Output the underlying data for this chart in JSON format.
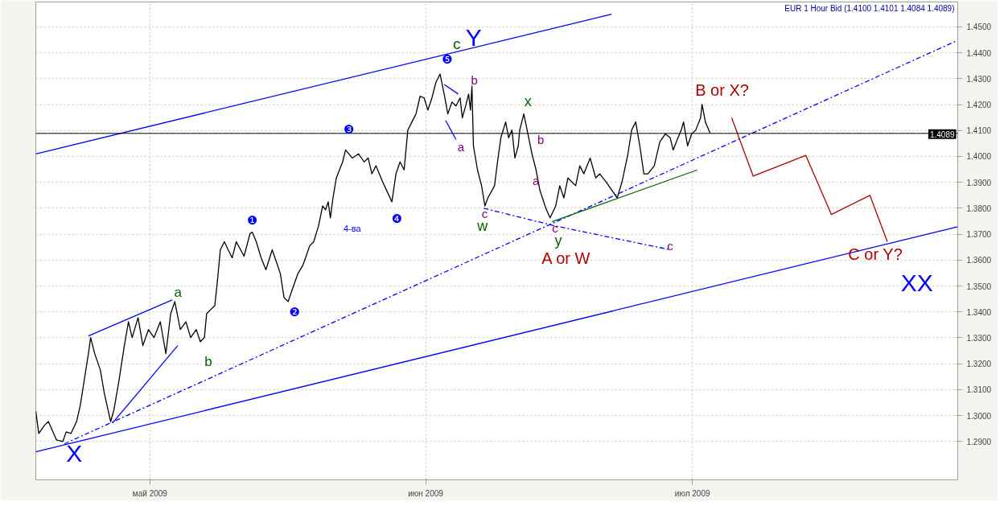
{
  "chart_data": {
    "type": "line",
    "title": "EUR 1 Hour Bid (1.4100 1.4101 1.4084 1.4089)",
    "xlim": [
      "2009-04-18T04:00",
      "2009-07-30T20:00"
    ],
    "xticks": [
      {
        "value": "2009-05-01",
        "label": "май 2009"
      },
      {
        "value": "2009-06-01",
        "label": "июн 2009"
      },
      {
        "value": "2009-07-01",
        "label": "июл 2009"
      }
    ],
    "ylim": [
      1.2752,
      1.4596
    ],
    "yticks": [
      {
        "value": 1.29,
        "label": "1.2900"
      },
      {
        "value": 1.3,
        "label": "1.3000"
      },
      {
        "value": 1.31,
        "label": "1.3100"
      },
      {
        "value": 1.32,
        "label": "1.3200"
      },
      {
        "value": 1.33,
        "label": "1.3300"
      },
      {
        "value": 1.34,
        "label": "1.3400"
      },
      {
        "value": 1.35,
        "label": "1.3500"
      },
      {
        "value": 1.36,
        "label": "1.3600"
      },
      {
        "value": 1.37,
        "label": "1.3700"
      },
      {
        "value": 1.38,
        "label": "1.3800"
      },
      {
        "value": 1.39,
        "label": "1.3900"
      },
      {
        "value": 1.4,
        "label": "1.4000"
      },
      {
        "value": 1.41,
        "label": "1.4100"
      },
      {
        "value": 1.42,
        "label": "1.4200"
      },
      {
        "value": 1.43,
        "label": "1.4300"
      },
      {
        "value": 1.44,
        "label": "1.4400"
      },
      {
        "value": 1.45,
        "label": "1.4500"
      }
    ],
    "grid": true,
    "line_style": "solid",
    "series": [
      {
        "color": "#000000",
        "x": [
          "2009-04-18T04:00",
          "2009-04-18T12:00",
          "2009-04-19T03:00",
          "2009-04-19T14:00",
          "2009-04-20T12:00",
          "2009-04-21T05:00",
          "2009-04-21T14:00",
          "2009-04-22T03:00",
          "2009-04-22T18:00",
          "2009-04-23T04:00",
          "2009-04-24T02:00",
          "2009-04-24T08:00",
          "2009-04-24T19:00",
          "2009-04-25T10:00",
          "2009-04-25T21:00",
          "2009-04-26T14:00",
          "2009-04-26T23:00",
          "2009-04-27T12:00",
          "2009-04-28T03:00",
          "2009-04-28T14:00",
          "2009-04-29T00:00",
          "2009-04-29T16:00",
          "2009-04-30T05:00",
          "2009-04-30T20:00",
          "2009-05-01T11:00",
          "2009-05-02T04:00",
          "2009-05-02T19:00",
          "2009-05-03T08:00",
          "2009-05-03T19:00",
          "2009-05-04T10:00",
          "2009-05-05T01:00",
          "2009-05-05T14:00",
          "2009-05-06T05:00",
          "2009-05-06T16:00",
          "2009-05-07T03:00",
          "2009-05-07T09:00",
          "2009-05-07T20:00",
          "2009-05-08T07:00",
          "2009-05-08T15:00",
          "2009-05-08T22:00",
          "2009-05-09T09:00",
          "2009-05-09T19:00",
          "2009-05-10T06:00",
          "2009-05-10T17:00",
          "2009-05-11T14:00",
          "2009-05-12T06:00",
          "2009-05-12T12:00",
          "2009-05-12T23:00",
          "2009-05-13T12:00",
          "2009-05-14T01:00",
          "2009-05-14T18:00",
          "2009-05-15T05:00",
          "2009-05-15T16:00",
          "2009-05-16T02:00",
          "2009-05-16T13:00",
          "2009-05-17T00:00",
          "2009-05-17T15:00",
          "2009-05-18T04:00",
          "2009-05-18T12:00",
          "2009-05-18T23:00",
          "2009-05-19T10:00",
          "2009-05-19T23:00",
          "2009-05-20T10:00",
          "2009-05-20T18:00",
          "2009-05-21T01:00",
          "2009-05-21T07:00",
          "2009-05-21T14:00",
          "2009-05-21T23:00",
          "2009-05-22T16:00",
          "2009-05-23T00:00",
          "2009-05-23T18:00",
          "2009-05-24T11:00",
          "2009-05-25T02:00",
          "2009-05-25T13:00",
          "2009-05-25T23:00",
          "2009-05-26T10:00",
          "2009-05-27T04:00",
          "2009-05-27T19:00",
          "2009-05-28T05:00",
          "2009-05-28T16:00",
          "2009-05-29T03:00",
          "2009-05-29T14:00",
          "2009-05-30T00:00",
          "2009-05-30T11:00",
          "2009-05-30T22:00",
          "2009-05-31T09:00",
          "2009-05-31T20:00",
          "2009-06-01T06:00",
          "2009-06-01T17:00",
          "2009-06-02T04:00",
          "2009-06-02T15:00",
          "2009-06-03T02:00",
          "2009-06-03T12:00",
          "2009-06-03T23:00",
          "2009-06-04T10:00",
          "2009-06-04T21:00",
          "2009-06-05T03:00",
          "2009-06-05T12:00",
          "2009-06-05T20:00",
          "2009-06-06T01:00",
          "2009-06-06T05:00",
          "2009-06-06T09:00",
          "2009-06-06T20:00",
          "2009-06-07T07:00",
          "2009-06-07T16:00",
          "2009-06-08T00:00",
          "2009-06-08T18:00",
          "2009-06-09T02:00",
          "2009-06-09T11:00",
          "2009-06-10T00:00",
          "2009-06-10T08:00",
          "2009-06-10T17:00",
          "2009-06-11T01:00",
          "2009-06-11T10:00",
          "2009-06-11T14:00",
          "2009-06-12T01:00",
          "2009-06-12T12:00",
          "2009-06-12T23:00",
          "2009-06-13T10:00",
          "2009-06-13T20:00",
          "2009-06-14T14:00",
          "2009-06-15T00:00",
          "2009-06-15T15:00",
          "2009-06-16T02:00",
          "2009-06-16T13:00",
          "2009-06-17T00:00",
          "2009-06-17T21:00",
          "2009-06-18T08:00",
          "2009-06-18T19:00",
          "2009-06-19T12:00",
          "2009-06-20T03:00",
          "2009-06-20T14:00",
          "2009-06-21T07:00",
          "2009-06-21T22:00",
          "2009-06-22T13:00",
          "2009-06-23T02:00",
          "2009-06-23T18:00",
          "2009-06-24T04:00",
          "2009-06-24T15:00",
          "2009-06-25T02:00",
          "2009-06-25T13:00",
          "2009-06-26T00:00",
          "2009-06-26T17:00",
          "2009-06-27T08:00",
          "2009-06-27T23:00",
          "2009-06-28T12:00",
          "2009-06-28T20:00",
          "2009-06-29T09:00",
          "2009-06-29T18:00",
          "2009-06-30T00:00",
          "2009-06-30T11:00",
          "2009-06-30T22:00",
          "2009-07-01T09:00",
          "2009-07-01T22:00",
          "2009-07-02T02:00",
          "2009-07-02T11:00",
          "2009-07-03T00:00"
        ],
        "values": [
          1.3017,
          1.2931,
          1.2962,
          1.2977,
          1.2906,
          1.29,
          1.2937,
          1.2931,
          1.2977,
          1.3039,
          1.3239,
          1.3301,
          1.3239,
          1.3177,
          1.3085,
          1.2977,
          1.3023,
          1.3131,
          1.327,
          1.3362,
          1.3301,
          1.3378,
          1.327,
          1.3332,
          1.3301,
          1.3362,
          1.3239,
          1.3393,
          1.344,
          1.3332,
          1.3362,
          1.3301,
          1.3332,
          1.3285,
          1.3301,
          1.3393,
          1.3409,
          1.3424,
          1.3532,
          1.364,
          1.3671,
          1.364,
          1.3609,
          1.3671,
          1.3615,
          1.3702,
          1.3708,
          1.3671,
          1.3609,
          1.3563,
          1.364,
          1.3594,
          1.3547,
          1.3455,
          1.344,
          1.3486,
          1.3547,
          1.3578,
          1.3609,
          1.3655,
          1.3671,
          1.3732,
          1.3809,
          1.3794,
          1.3825,
          1.3763,
          1.384,
          1.3917,
          1.3979,
          1.4025,
          1.3994,
          1.401,
          1.3979,
          1.3994,
          1.3933,
          1.3964,
          1.3902,
          1.3856,
          1.3825,
          1.3933,
          1.3979,
          1.3948,
          1.4102,
          1.4133,
          1.4164,
          1.4232,
          1.4226,
          1.4179,
          1.4226,
          1.4287,
          1.4318,
          1.4241,
          1.4164,
          1.421,
          1.4195,
          1.4226,
          1.4149,
          1.4195,
          1.4241,
          1.4179,
          1.4272,
          1.4041,
          1.3948,
          1.3887,
          1.3809,
          1.384,
          1.3887,
          1.3979,
          1.4072,
          1.4133,
          1.4072,
          1.4102,
          1.3994,
          1.4041,
          1.4102,
          1.4164,
          1.4087,
          1.401,
          1.3948,
          1.3871,
          1.3794,
          1.3763,
          1.3809,
          1.3887,
          1.384,
          1.3917,
          1.3887,
          1.3964,
          1.3933,
          1.3994,
          1.3917,
          1.3933,
          1.3902,
          1.3871,
          1.384,
          1.3902,
          1.401,
          1.4102,
          1.4133,
          1.4041,
          1.3933,
          1.3933,
          1.3964,
          1.4056,
          1.4087,
          1.4072,
          1.4025,
          1.4072,
          1.4102,
          1.4133,
          1.4041,
          1.4087,
          1.4102,
          1.4149,
          1.4201,
          1.4133,
          1.4089
        ]
      },
      {
        "color": "#0000ff",
        "x": [
          "2009-04-18T04:00",
          "2009-06-21T22:00"
        ],
        "values": [
          1.401,
          1.4549
        ]
      },
      {
        "color": "#0000ff",
        "x": [
          "2009-04-18T04:00",
          "2009-07-30T20:00"
        ],
        "values": [
          1.286,
          1.3729
        ]
      },
      {
        "color": "#0000ff",
        "line_style": "dashed",
        "x": [
          "2009-04-21T09:00",
          "2009-07-30T20:00"
        ],
        "values": [
          1.2891,
          1.4448
        ]
      },
      {
        "color": "#0000ff",
        "x": [
          "2009-04-24T02:00",
          "2009-05-03T12:00"
        ],
        "values": [
          1.3307,
          1.3446
        ]
      },
      {
        "color": "#0000ff",
        "x": [
          "2009-04-26T19:00",
          "2009-05-04T03:00"
        ],
        "values": [
          1.2971,
          1.327
        ]
      },
      {
        "color": "#0000ff",
        "x": [
          "2009-06-03T02:00",
          "2009-06-04T16:00"
        ],
        "values": [
          1.4278,
          1.4241
        ]
      },
      {
        "color": "#0000ff",
        "x": [
          "2009-06-03T06:00",
          "2009-06-04T10:00"
        ],
        "values": [
          1.4139,
          1.4065
        ]
      },
      {
        "color": "#0000ff",
        "line_style": "dashed",
        "x": [
          "2009-06-07T13:00",
          "2009-06-15T13:00",
          "2009-06-28T12:00"
        ],
        "values": [
          1.38,
          1.3732,
          1.364
        ]
      },
      {
        "color": "#006400",
        "x": [
          "2009-06-15T05:00",
          "2009-07-01T13:00"
        ],
        "values": [
          1.3748,
          1.3948
        ]
      },
      {
        "color": "#b00000",
        "x": [
          "2009-07-05T10:00",
          "2009-07-07T20:00",
          "2009-07-13T18:00",
          "2009-07-16T15:00",
          "2009-07-20T23:00",
          "2009-07-22T22:00"
        ],
        "values": [
          1.4149,
          1.3924,
          1.4004,
          1.3776,
          1.385,
          1.3671
        ]
      }
    ],
    "ref_lines": [
      {
        "axis": "y",
        "value": 1.4089,
        "label": "1.4089",
        "color": "#000000"
      }
    ],
    "annotations": [
      "X",
      "a",
      "b",
      "❶",
      "❷",
      "❸",
      "4-ва",
      "❹",
      "❺",
      "c",
      "Y",
      "b",
      "a",
      "c",
      "w",
      "x",
      "b",
      "a",
      "c",
      "y",
      "A or W",
      "c",
      "B or X?",
      "C or Y?",
      "XX"
    ]
  }
}
